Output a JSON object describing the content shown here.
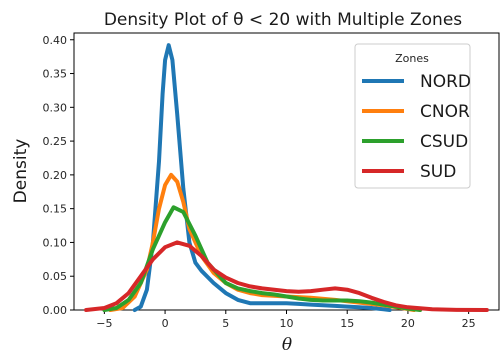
{
  "chart_data": {
    "type": "line",
    "title": "Density Plot of θ < 20 with Multiple Zones",
    "xlabel": "θ",
    "ylabel": "Density",
    "xlim": [
      -7.5,
      27.5
    ],
    "ylim": [
      0,
      0.41
    ],
    "x_ticks": [
      -5,
      0,
      5,
      10,
      15,
      20,
      25
    ],
    "y_ticks": [
      0.0,
      0.05,
      0.1,
      0.15,
      0.2,
      0.25,
      0.3,
      0.35,
      0.4
    ],
    "y_tick_labels": [
      "0.00",
      "0.05",
      "0.10",
      "0.15",
      "0.20",
      "0.25",
      "0.30",
      "0.35",
      "0.40"
    ],
    "grid": false,
    "legend": {
      "title": "Zones",
      "placement": "top-right"
    },
    "series": [
      {
        "name": "NORD",
        "color": "#1f77b4",
        "points": [
          [
            -2.5,
            0
          ],
          [
            -2,
            0.005
          ],
          [
            -1.5,
            0.03
          ],
          [
            -1,
            0.1
          ],
          [
            -0.5,
            0.22
          ],
          [
            -0.2,
            0.32
          ],
          [
            0,
            0.37
          ],
          [
            0.3,
            0.392
          ],
          [
            0.6,
            0.37
          ],
          [
            1,
            0.29
          ],
          [
            1.5,
            0.18
          ],
          [
            2,
            0.1
          ],
          [
            2.5,
            0.07
          ],
          [
            3,
            0.058
          ],
          [
            4,
            0.04
          ],
          [
            5,
            0.025
          ],
          [
            6,
            0.015
          ],
          [
            7,
            0.01
          ],
          [
            8,
            0.01
          ],
          [
            9,
            0.01
          ],
          [
            10,
            0.01
          ],
          [
            11,
            0.009
          ],
          [
            12,
            0.008
          ],
          [
            13,
            0.007
          ],
          [
            14,
            0.006
          ],
          [
            15,
            0.005
          ],
          [
            16,
            0.004
          ],
          [
            17,
            0.003
          ],
          [
            18,
            0.001
          ],
          [
            18.5,
            0
          ]
        ]
      },
      {
        "name": "CNOR",
        "color": "#ff7f0e",
        "points": [
          [
            -4.5,
            0
          ],
          [
            -3.5,
            0.003
          ],
          [
            -2.5,
            0.02
          ],
          [
            -1.5,
            0.06
          ],
          [
            -1,
            0.1
          ],
          [
            -0.5,
            0.15
          ],
          [
            0,
            0.185
          ],
          [
            0.5,
            0.2
          ],
          [
            1,
            0.19
          ],
          [
            1.5,
            0.16
          ],
          [
            2,
            0.12
          ],
          [
            3,
            0.08
          ],
          [
            4,
            0.055
          ],
          [
            5,
            0.04
          ],
          [
            6,
            0.03
          ],
          [
            7,
            0.025
          ],
          [
            8,
            0.022
          ],
          [
            10,
            0.02
          ],
          [
            12,
            0.018
          ],
          [
            14,
            0.015
          ],
          [
            15,
            0.013
          ],
          [
            16,
            0.011
          ],
          [
            18,
            0.007
          ],
          [
            19.5,
            0.003
          ],
          [
            20.5,
            0
          ]
        ]
      },
      {
        "name": "CSUD",
        "color": "#2ca02c",
        "points": [
          [
            -5,
            0
          ],
          [
            -4,
            0.003
          ],
          [
            -3,
            0.015
          ],
          [
            -2,
            0.04
          ],
          [
            -1,
            0.09
          ],
          [
            0,
            0.13
          ],
          [
            0.7,
            0.152
          ],
          [
            1.5,
            0.145
          ],
          [
            2.5,
            0.11
          ],
          [
            3.5,
            0.07
          ],
          [
            5,
            0.04
          ],
          [
            6,
            0.032
          ],
          [
            7,
            0.028
          ],
          [
            8,
            0.025
          ],
          [
            9,
            0.023
          ],
          [
            10,
            0.02
          ],
          [
            11,
            0.017
          ],
          [
            12,
            0.015
          ],
          [
            13,
            0.014
          ],
          [
            14,
            0.014
          ],
          [
            15,
            0.014
          ],
          [
            16,
            0.013
          ],
          [
            17,
            0.011
          ],
          [
            18,
            0.008
          ],
          [
            19,
            0.005
          ],
          [
            20,
            0.002
          ],
          [
            21,
            0
          ]
        ]
      },
      {
        "name": "SUD",
        "color": "#d62728",
        "points": [
          [
            -6.5,
            0
          ],
          [
            -5,
            0.003
          ],
          [
            -4,
            0.01
          ],
          [
            -3,
            0.025
          ],
          [
            -2,
            0.05
          ],
          [
            -1,
            0.075
          ],
          [
            0,
            0.093
          ],
          [
            1,
            0.1
          ],
          [
            2,
            0.095
          ],
          [
            3,
            0.08
          ],
          [
            4,
            0.06
          ],
          [
            5,
            0.048
          ],
          [
            6,
            0.04
          ],
          [
            7,
            0.035
          ],
          [
            8,
            0.032
          ],
          [
            9,
            0.03
          ],
          [
            10,
            0.028
          ],
          [
            11,
            0.027
          ],
          [
            12,
            0.028
          ],
          [
            13,
            0.03
          ],
          [
            14,
            0.032
          ],
          [
            15,
            0.03
          ],
          [
            16,
            0.025
          ],
          [
            17,
            0.018
          ],
          [
            18,
            0.012
          ],
          [
            19,
            0.007
          ],
          [
            20,
            0.004
          ],
          [
            22,
            0.001
          ],
          [
            24,
            0.0002
          ],
          [
            26.5,
            0
          ]
        ]
      }
    ]
  }
}
